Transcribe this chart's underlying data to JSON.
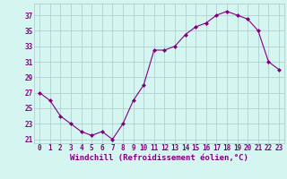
{
  "x": [
    0,
    1,
    2,
    3,
    4,
    5,
    6,
    7,
    8,
    9,
    10,
    11,
    12,
    13,
    14,
    15,
    16,
    17,
    18,
    19,
    20,
    21,
    22,
    23
  ],
  "y": [
    27,
    26,
    24,
    23,
    22,
    21.5,
    22,
    21,
    23,
    26,
    28,
    32.5,
    32.5,
    33,
    34.5,
    35.5,
    36,
    37,
    37.5,
    37,
    36.5,
    35,
    31,
    30
  ],
  "line_color": "#800080",
  "marker": "D",
  "marker_size": 2,
  "bg_color": "#d5f5f0",
  "grid_color": "#b0d0d0",
  "xlabel": "Windchill (Refroidissement éolien,°C)",
  "yticks": [
    21,
    23,
    25,
    27,
    29,
    31,
    33,
    35,
    37
  ],
  "xticks": [
    0,
    1,
    2,
    3,
    4,
    5,
    6,
    7,
    8,
    9,
    10,
    11,
    12,
    13,
    14,
    15,
    16,
    17,
    18,
    19,
    20,
    21,
    22,
    23
  ],
  "ylim": [
    20.5,
    38.5
  ],
  "xlim": [
    -0.5,
    23.5
  ],
  "tick_color": "#800080",
  "tick_fontsize": 5.5,
  "xlabel_fontsize": 6.5,
  "label_fontweight": "bold"
}
